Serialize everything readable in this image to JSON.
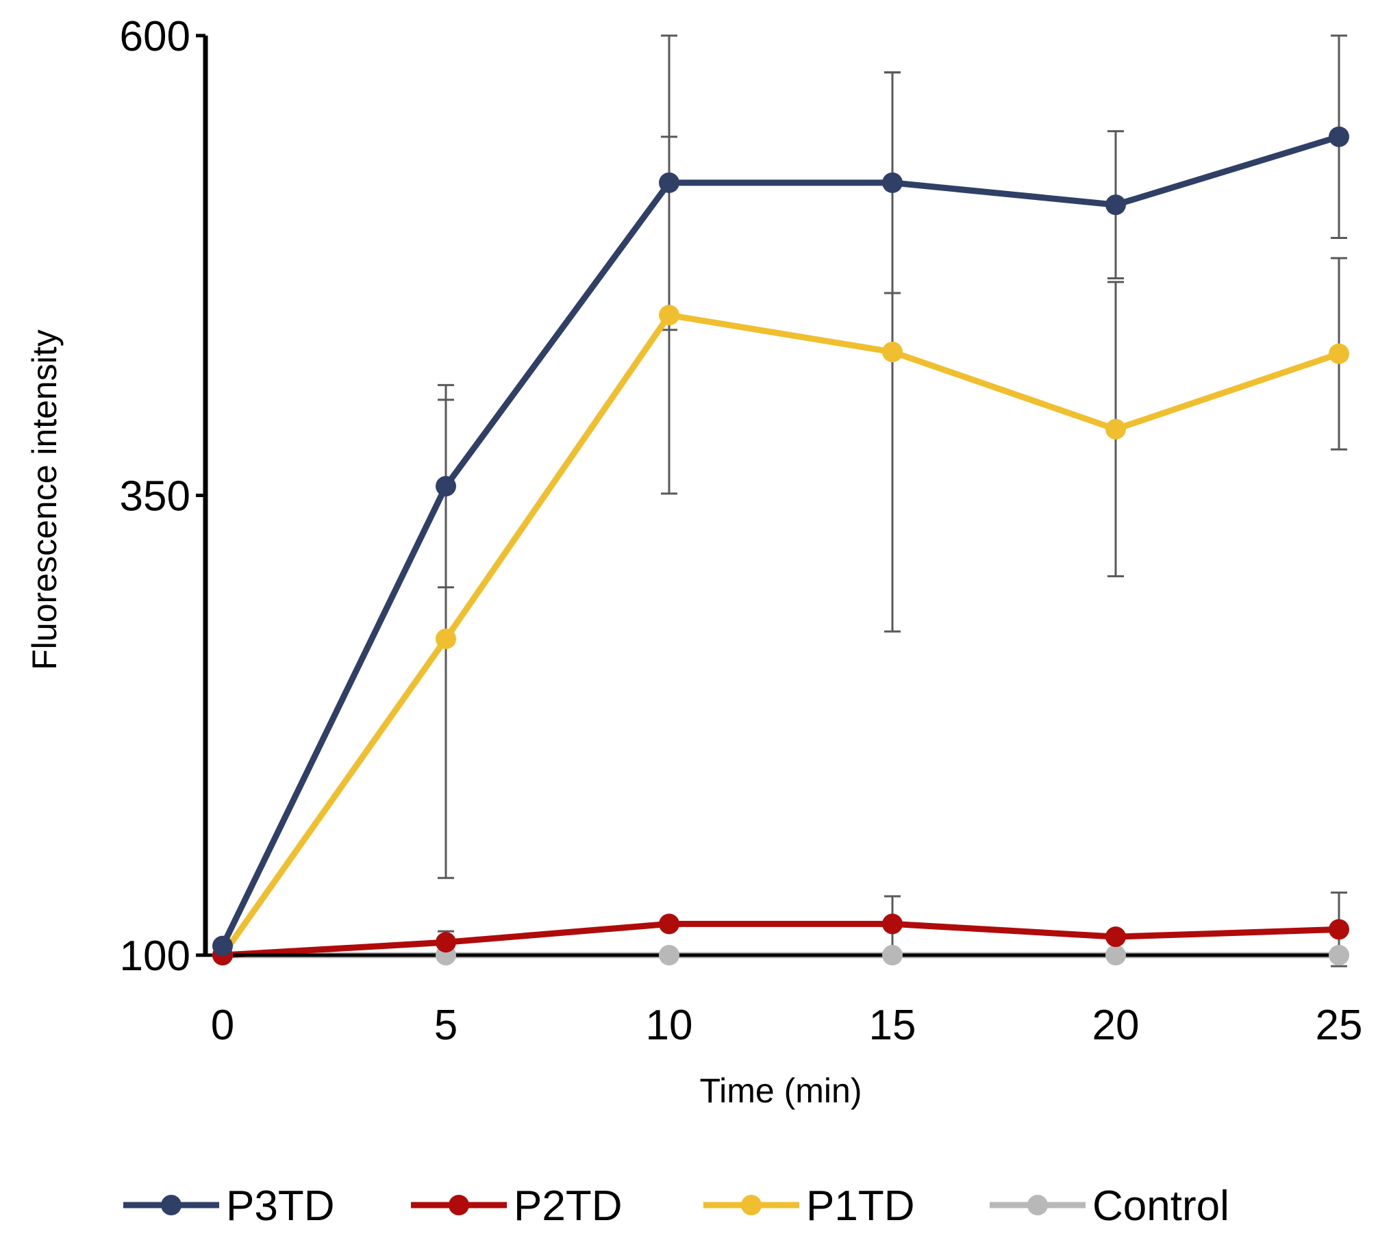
{
  "chart_data": {
    "type": "line",
    "title": "",
    "xlabel": "Time (min)",
    "ylabel": "Fluorescence intensity",
    "x": [
      0,
      5,
      10,
      15,
      20,
      25
    ],
    "xticks": [
      "0",
      "5",
      "10",
      "15",
      "20",
      "25"
    ],
    "yticks": [
      "100",
      "350",
      "600"
    ],
    "ylim": [
      100,
      600
    ],
    "xlim": [
      0,
      25
    ],
    "grid": false,
    "legend_position": "bottom",
    "series": [
      {
        "name": "P3TD",
        "color": "#2f3f66",
        "values": [
          105,
          355,
          520,
          520,
          508,
          545
        ],
        "errors": [
          0,
          55,
          80,
          60,
          40,
          55
        ]
      },
      {
        "name": "P2TD",
        "color": "#b00b0b",
        "values": [
          100,
          107,
          117,
          117,
          110,
          114
        ],
        "errors": [
          0,
          6,
          0,
          15,
          0,
          20
        ]
      },
      {
        "name": "P1TD",
        "color": "#f0bf30",
        "values": [
          100,
          272,
          448,
          428,
          386,
          427
        ],
        "errors": [
          0,
          130,
          97,
          152,
          80,
          52
        ]
      },
      {
        "name": "Control",
        "color": "#b8b8b8",
        "values": [
          100,
          100,
          100,
          100,
          100,
          100
        ],
        "errors": [
          0,
          0,
          0,
          0,
          0,
          0
        ]
      }
    ]
  }
}
